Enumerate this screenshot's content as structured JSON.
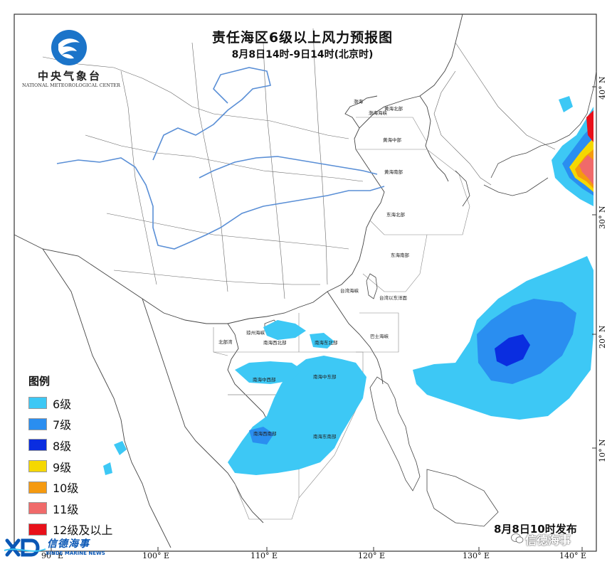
{
  "title": "责任海区6级以上风力预报图",
  "subtitle": "8月8日14时-9日14时(北京时)",
  "agency": {
    "name_cn": "中央气象台",
    "name_en": "NATIONAL METEOROLOGICAL CENTER"
  },
  "legend": {
    "title": "图例",
    "items": [
      {
        "label": "6级",
        "color": "#3dc8f5"
      },
      {
        "label": "7级",
        "color": "#2a8ef0"
      },
      {
        "label": "8级",
        "color": "#0a2de0"
      },
      {
        "label": "9级",
        "color": "#f5d800"
      },
      {
        "label": "10级",
        "color": "#f59a10"
      },
      {
        "label": "11级",
        "color": "#f06a6a"
      },
      {
        "label": "12级及以上",
        "color": "#e8101a"
      }
    ]
  },
  "issued": "8月8日10时发布",
  "watermark": "信德海事",
  "brand": {
    "name_cn": "信德海事",
    "name_en": "XINDE MARINE NEWS"
  },
  "longitude_labels": [
    "90° E",
    "100° E",
    "110° E",
    "120° E",
    "130° E",
    "140° E"
  ],
  "latitude_labels": [
    "40° N",
    "30° N",
    "20° N",
    "10° N"
  ],
  "sea_areas": [
    "渤海",
    "渤海海峡",
    "黄海北部",
    "黄海中部",
    "黄海南部",
    "东海北部",
    "东海南部",
    "台湾海峡",
    "台湾以东洋面",
    "巴士海峡",
    "北部湾",
    "琼州海峡",
    "南海西北部",
    "南海东北部",
    "南海中西部",
    "南海中东部",
    "南海西南部",
    "南海东南部"
  ],
  "colors": {
    "border": "#555555",
    "river": "#5a8fd6",
    "land": "#ffffff"
  }
}
